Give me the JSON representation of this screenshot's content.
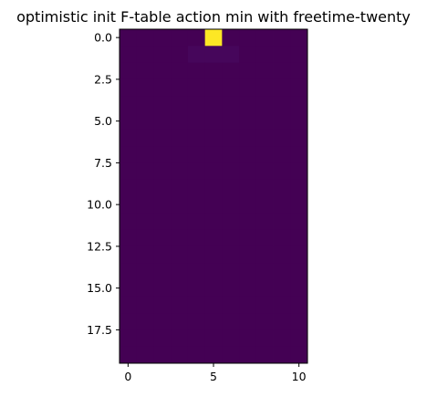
{
  "chart_data": {
    "type": "heatmap",
    "title": "optimistic init F-table action min with freetime-twenty",
    "xlabel": "",
    "ylabel": "",
    "n_rows": 20,
    "n_cols": 11,
    "xlim": [
      -0.5,
      10.5
    ],
    "ylim": [
      19.5,
      -0.5
    ],
    "x_ticks": [
      0,
      5,
      10
    ],
    "x_tick_labels": [
      "0",
      "5",
      "10"
    ],
    "y_ticks": [
      0,
      2.5,
      5,
      7.5,
      10,
      12.5,
      15,
      17.5
    ],
    "y_tick_labels": [
      "0.0",
      "2.5",
      "5.0",
      "7.5",
      "10.0",
      "12.5",
      "15.0",
      "17.5"
    ],
    "colormap": "viridis",
    "value_range": [
      0,
      1
    ],
    "background_value": 0,
    "highlighted_cells": [
      {
        "row": 0,
        "col": 5,
        "value": 1.0
      },
      {
        "row": 1,
        "col": 4,
        "value": 0.02
      },
      {
        "row": 1,
        "col": 5,
        "value": 0.02
      },
      {
        "row": 1,
        "col": 6,
        "value": 0.02
      }
    ],
    "colors": {
      "low": "#440154",
      "high": "#fde725",
      "faint": "#46065b"
    },
    "grid": false,
    "legend": "none"
  }
}
